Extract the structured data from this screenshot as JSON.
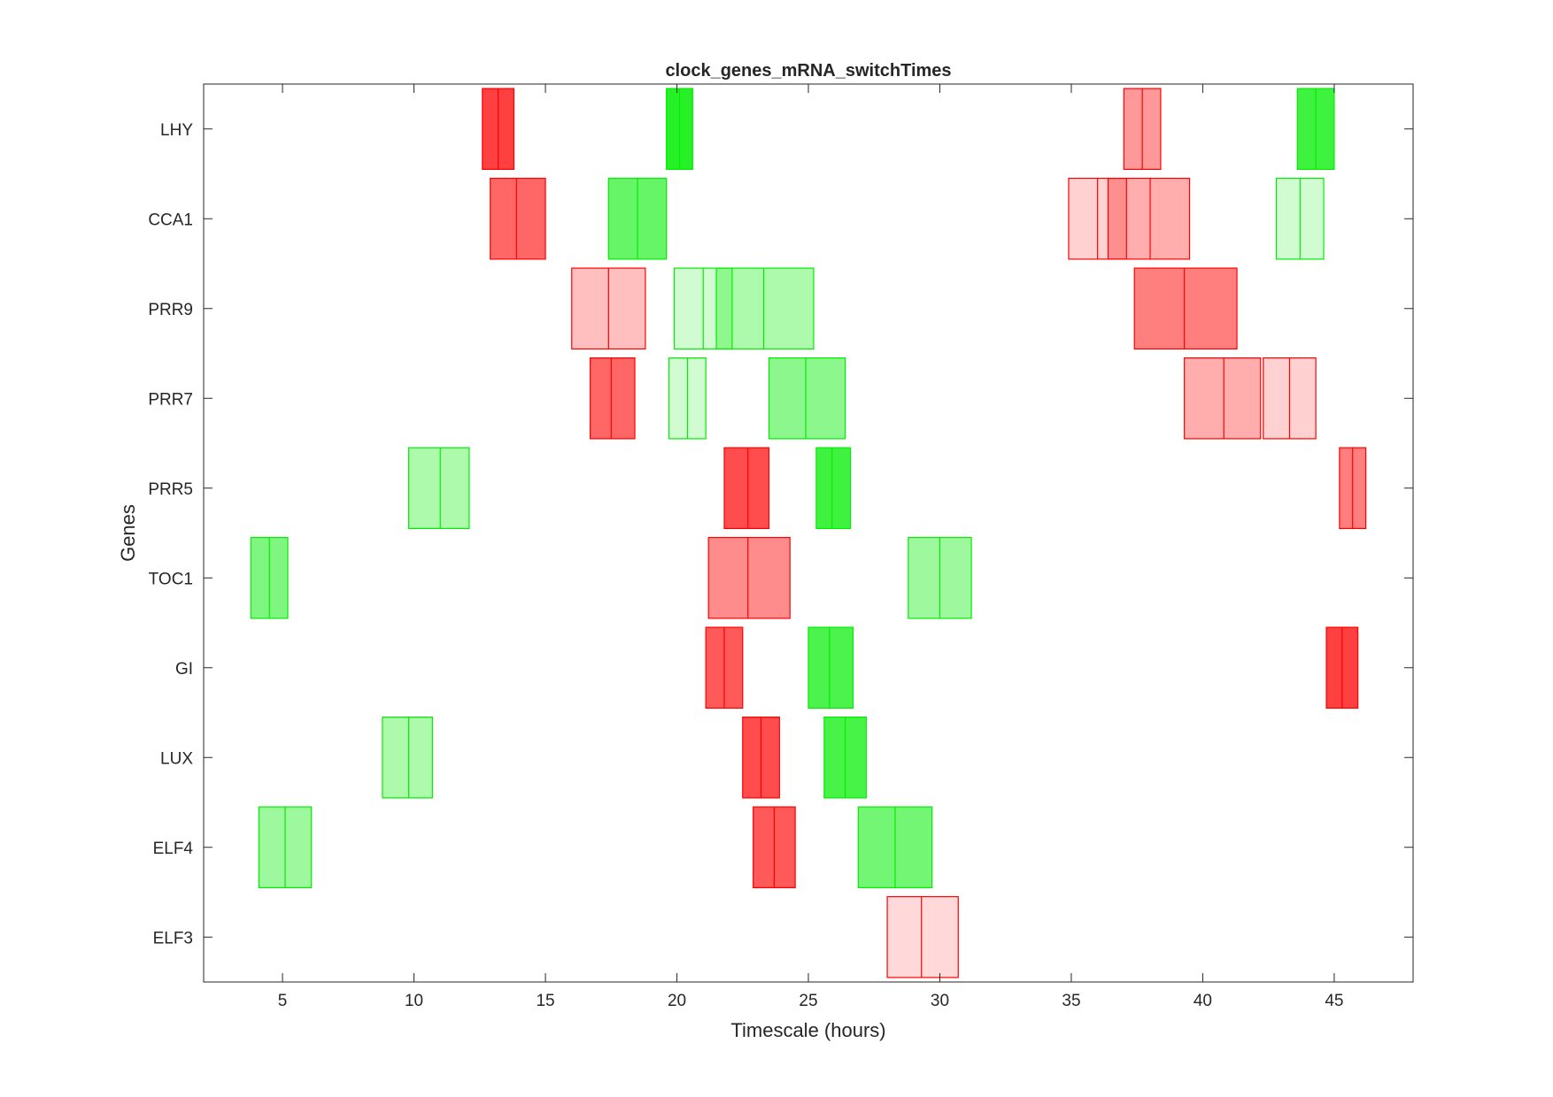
{
  "chart_data": {
    "type": "gantt",
    "title": "clock_genes_mRNA_switchTimes",
    "xlabel": "Timescale (hours)",
    "ylabel": "Genes",
    "xlim": [
      2,
      48
    ],
    "xticks": [
      5,
      10,
      15,
      20,
      25,
      30,
      35,
      40,
      45
    ],
    "categories": [
      "LHY",
      "CCA1",
      "PRR9",
      "PRR7",
      "PRR5",
      "TOC1",
      "GI",
      "LUX",
      "ELF4",
      "ELF3"
    ],
    "grid": false,
    "legend": "none",
    "colors": {
      "off": "#ff0000",
      "on": "#00ee00"
    },
    "boxes": [
      {
        "gene": "LHY",
        "switch": "off",
        "start": 12.6,
        "mid": 13.2,
        "end": 13.8,
        "opacity": 0.75
      },
      {
        "gene": "LHY",
        "switch": "on",
        "start": 19.6,
        "mid": 20.1,
        "end": 20.6,
        "opacity": 0.85
      },
      {
        "gene": "LHY",
        "switch": "off",
        "start": 37.0,
        "mid": 37.7,
        "end": 38.4,
        "opacity": 0.4
      },
      {
        "gene": "LHY",
        "switch": "on",
        "start": 43.6,
        "mid": 44.3,
        "end": 45.0,
        "opacity": 0.75
      },
      {
        "gene": "CCA1",
        "switch": "off",
        "start": 12.9,
        "mid": 13.9,
        "end": 15.0,
        "opacity": 0.6
      },
      {
        "gene": "CCA1",
        "switch": "on",
        "start": 17.4,
        "mid": 18.5,
        "end": 19.6,
        "opacity": 0.6
      },
      {
        "gene": "CCA1",
        "switch": "off",
        "start": 34.9,
        "mid": 36.0,
        "end": 37.1,
        "opacity": 0.18
      },
      {
        "gene": "CCA1",
        "switch": "off",
        "start": 36.4,
        "mid": 38.0,
        "end": 39.5,
        "opacity": 0.32
      },
      {
        "gene": "CCA1",
        "switch": "on",
        "start": 42.8,
        "mid": 43.7,
        "end": 44.6,
        "opacity": 0.18
      },
      {
        "gene": "PRR9",
        "switch": "off",
        "start": 16.0,
        "mid": 17.4,
        "end": 18.8,
        "opacity": 0.25
      },
      {
        "gene": "PRR9",
        "switch": "on",
        "start": 19.9,
        "mid": 21.0,
        "end": 22.1,
        "opacity": 0.18
      },
      {
        "gene": "PRR9",
        "switch": "on",
        "start": 21.5,
        "mid": 23.3,
        "end": 25.2,
        "opacity": 0.32
      },
      {
        "gene": "PRR9",
        "switch": "off",
        "start": 37.4,
        "mid": 39.3,
        "end": 41.3,
        "opacity": 0.5
      },
      {
        "gene": "PRR7",
        "switch": "off",
        "start": 16.7,
        "mid": 17.5,
        "end": 18.4,
        "opacity": 0.6
      },
      {
        "gene": "PRR7",
        "switch": "on",
        "start": 19.7,
        "mid": 20.4,
        "end": 21.1,
        "opacity": 0.18
      },
      {
        "gene": "PRR7",
        "switch": "on",
        "start": 23.5,
        "mid": 24.9,
        "end": 26.4,
        "opacity": 0.45
      },
      {
        "gene": "PRR7",
        "switch": "off",
        "start": 39.3,
        "mid": 40.8,
        "end": 42.2,
        "opacity": 0.32
      },
      {
        "gene": "PRR7",
        "switch": "off",
        "start": 42.3,
        "mid": 43.3,
        "end": 44.3,
        "opacity": 0.18
      },
      {
        "gene": "PRR5",
        "switch": "off",
        "start": 21.8,
        "mid": 22.7,
        "end": 23.5,
        "opacity": 0.7
      },
      {
        "gene": "PRR5",
        "switch": "on",
        "start": 9.8,
        "mid": 11.0,
        "end": 12.1,
        "opacity": 0.32
      },
      {
        "gene": "PRR5",
        "switch": "on",
        "start": 25.3,
        "mid": 25.9,
        "end": 26.6,
        "opacity": 0.75
      },
      {
        "gene": "PRR5",
        "switch": "off",
        "start": 45.2,
        "mid": 45.7,
        "end": 46.2,
        "opacity": 0.5
      },
      {
        "gene": "TOC1",
        "switch": "on",
        "start": 3.8,
        "mid": 4.5,
        "end": 5.2,
        "opacity": 0.5
      },
      {
        "gene": "TOC1",
        "switch": "off",
        "start": 21.2,
        "mid": 22.7,
        "end": 24.3,
        "opacity": 0.45
      },
      {
        "gene": "TOC1",
        "switch": "on",
        "start": 28.8,
        "mid": 30.0,
        "end": 31.2,
        "opacity": 0.38
      },
      {
        "gene": "GI",
        "switch": "off",
        "start": 21.1,
        "mid": 21.8,
        "end": 22.5,
        "opacity": 0.65
      },
      {
        "gene": "GI",
        "switch": "on",
        "start": 25.0,
        "mid": 25.8,
        "end": 26.7,
        "opacity": 0.7
      },
      {
        "gene": "GI",
        "switch": "off",
        "start": 44.7,
        "mid": 45.3,
        "end": 45.9,
        "opacity": 0.75
      },
      {
        "gene": "LUX",
        "switch": "on",
        "start": 8.8,
        "mid": 9.8,
        "end": 10.7,
        "opacity": 0.32
      },
      {
        "gene": "LUX",
        "switch": "off",
        "start": 22.5,
        "mid": 23.2,
        "end": 23.9,
        "opacity": 0.7
      },
      {
        "gene": "LUX",
        "switch": "on",
        "start": 25.6,
        "mid": 26.4,
        "end": 27.2,
        "opacity": 0.72
      },
      {
        "gene": "ELF4",
        "switch": "on",
        "start": 4.1,
        "mid": 5.1,
        "end": 6.1,
        "opacity": 0.38
      },
      {
        "gene": "ELF4",
        "switch": "off",
        "start": 22.9,
        "mid": 23.7,
        "end": 24.5,
        "opacity": 0.65
      },
      {
        "gene": "ELF4",
        "switch": "on",
        "start": 26.9,
        "mid": 28.3,
        "end": 29.7,
        "opacity": 0.55
      },
      {
        "gene": "ELF3",
        "switch": "off",
        "start": 28.0,
        "mid": 29.3,
        "end": 30.7,
        "opacity": 0.15
      }
    ]
  }
}
